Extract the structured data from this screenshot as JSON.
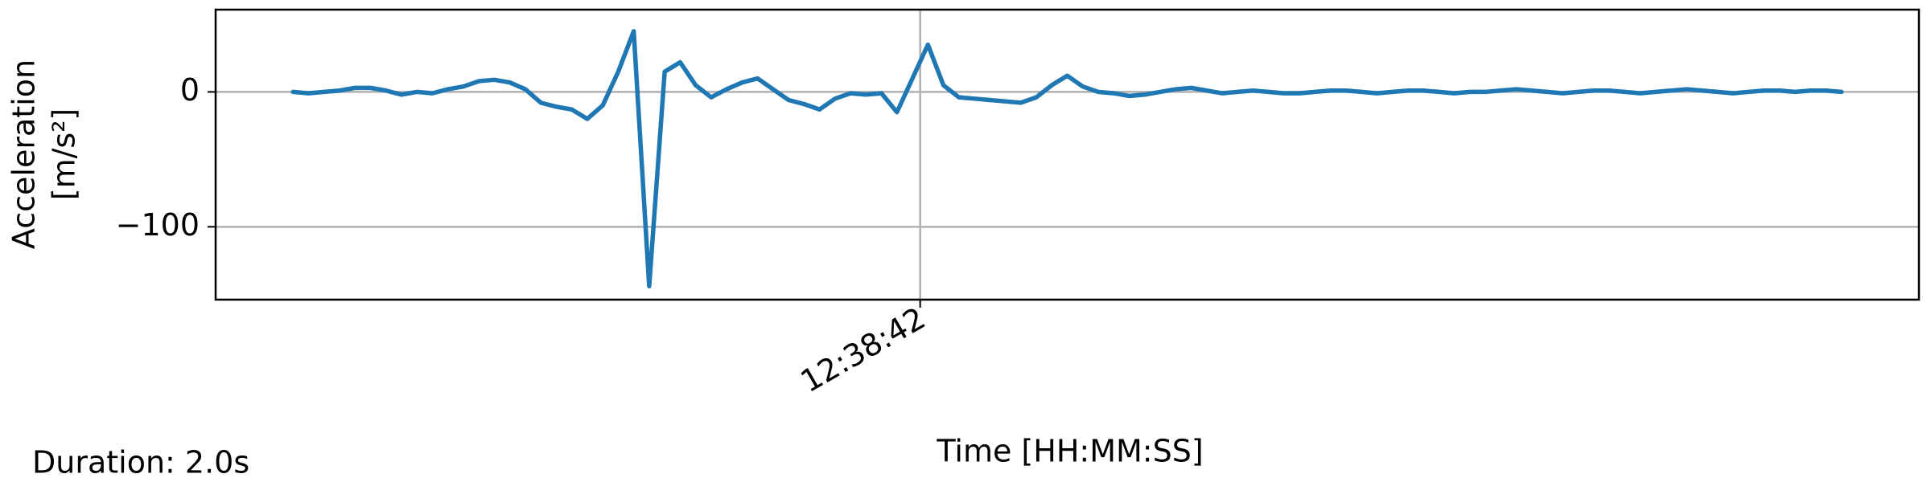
{
  "chart_data": {
    "type": "line",
    "ylabel": [
      "Acceleration",
      "[m/s²]"
    ],
    "xlabel": "Time [HH:MM:SS]",
    "footer": "Duration: 2.0s",
    "color": "#1f77b4",
    "grid": true,
    "x": [
      45521.19,
      45521.21,
      45521.23,
      45521.25,
      45521.27,
      45521.29,
      45521.31,
      45521.33,
      45521.35,
      45521.37,
      45521.39,
      45521.41,
      45521.43,
      45521.45,
      45521.47,
      45521.49,
      45521.51,
      45521.53,
      45521.55,
      45521.57,
      45521.59,
      45521.61,
      45521.63,
      45521.65,
      45521.67,
      45521.69,
      45521.71,
      45521.73,
      45521.75,
      45521.77,
      45521.79,
      45521.81,
      45521.83,
      45521.85,
      45521.87,
      45521.89,
      45521.91,
      45521.93,
      45521.95,
      45521.97,
      45521.99,
      45522.01,
      45522.03,
      45522.05,
      45522.07,
      45522.09,
      45522.11,
      45522.13,
      45522.15,
      45522.17,
      45522.19,
      45522.21,
      45522.23,
      45522.25,
      45522.27,
      45522.29,
      45522.31,
      45522.33,
      45522.35,
      45522.37,
      45522.39,
      45522.41,
      45522.43,
      45522.45,
      45522.47,
      45522.49,
      45522.51,
      45522.53,
      45522.55,
      45522.57,
      45522.59,
      45522.61,
      45522.63,
      45522.65,
      45522.67,
      45522.69,
      45522.71,
      45522.73,
      45522.75,
      45522.77,
      45522.79,
      45522.81,
      45522.83,
      45522.85,
      45522.87,
      45522.89,
      45522.91,
      45522.93,
      45522.95,
      45522.97,
      45522.99,
      45523.01,
      45523.03,
      45523.05,
      45523.07,
      45523.09,
      45523.11,
      45523.13,
      45523.15,
      45523.17,
      45523.19
    ],
    "values": [
      0,
      -1,
      0,
      1,
      3,
      3,
      1,
      -2,
      0,
      -1,
      2,
      4,
      8,
      9,
      7,
      2,
      -8,
      -11,
      -13,
      -20,
      -10,
      15,
      45,
      -144,
      15,
      22,
      5,
      -4,
      2,
      7,
      10,
      2,
      -6,
      -9,
      -13,
      -5,
      -1,
      -2,
      -1,
      -15,
      10,
      35,
      5,
      -4,
      -5,
      -6,
      -7,
      -8,
      -4,
      5,
      12,
      4,
      0,
      -1,
      -3,
      -2,
      0,
      2,
      3,
      1,
      -1,
      0,
      1,
      0,
      -1,
      -1,
      0,
      1,
      1,
      0,
      -1,
      0,
      1,
      1,
      0,
      -1,
      0,
      0,
      1,
      2,
      1,
      0,
      -1,
      0,
      1,
      1,
      0,
      -1,
      0,
      1,
      2,
      1,
      0,
      -1,
      0,
      1,
      1,
      0,
      1,
      1,
      0
    ],
    "xlim": [
      45521.09,
      45523.29
    ],
    "xticks": [
      {
        "value": 45522,
        "label": "12:38:42"
      }
    ],
    "ylim": [
      -154,
      61
    ],
    "yticks": [
      0,
      {
        "value": -100,
        "label": "−100"
      }
    ]
  }
}
